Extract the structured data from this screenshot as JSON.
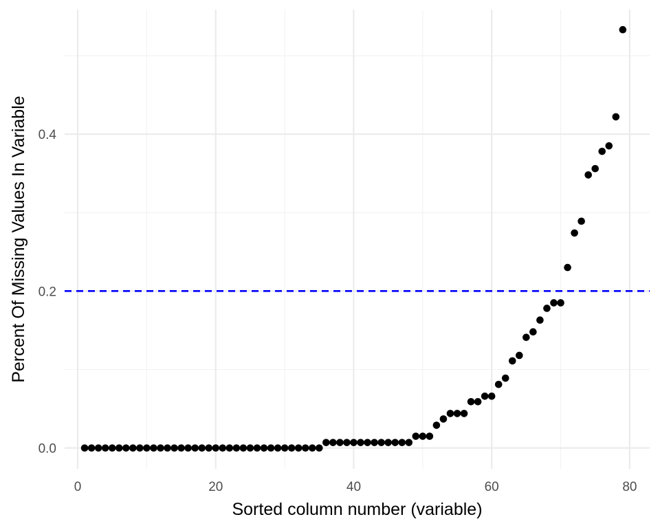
{
  "chart_data": {
    "type": "scatter",
    "title": "",
    "xlabel": "Sorted column number (variable)",
    "ylabel": "Percent Of Missing Values In Variable",
    "xlim": [
      -1.9,
      82.9
    ],
    "ylim": [
      -0.0266,
      0.5586
    ],
    "x_ticks": [
      0,
      20,
      40,
      60,
      80
    ],
    "x_tick_labels": [
      "0",
      "20",
      "40",
      "60",
      "80"
    ],
    "y_ticks": [
      0.0,
      0.2,
      0.4
    ],
    "y_tick_labels": [
      "0.0",
      "0.2",
      "0.4"
    ],
    "grid": true,
    "point_color": "#000000",
    "reference_line": {
      "y": 0.2,
      "color": "#0000ff",
      "style": "dashed"
    },
    "x": [
      1,
      2,
      3,
      4,
      5,
      6,
      7,
      8,
      9,
      10,
      11,
      12,
      13,
      14,
      15,
      16,
      17,
      18,
      19,
      20,
      21,
      22,
      23,
      24,
      25,
      26,
      27,
      28,
      29,
      30,
      31,
      32,
      33,
      34,
      35,
      36,
      37,
      38,
      39,
      40,
      41,
      42,
      43,
      44,
      45,
      46,
      47,
      48,
      49,
      50,
      51,
      52,
      53,
      54,
      55,
      56,
      57,
      58,
      59,
      60,
      61,
      62,
      63,
      64,
      65,
      66,
      67,
      68,
      69,
      70,
      71,
      72,
      73,
      74,
      75,
      76,
      77,
      78,
      79
    ],
    "y": [
      0,
      0,
      0,
      0,
      0,
      0,
      0,
      0,
      0,
      0,
      0,
      0,
      0,
      0,
      0,
      0,
      0,
      0,
      0,
      0,
      0,
      0,
      0,
      0,
      0,
      0,
      0,
      0,
      0,
      0,
      0,
      0,
      0,
      0,
      0,
      0.007,
      0.007,
      0.007,
      0.007,
      0.007,
      0.007,
      0.007,
      0.007,
      0.007,
      0.007,
      0.007,
      0.007,
      0.007,
      0.015,
      0.015,
      0.015,
      0.029,
      0.037,
      0.044,
      0.044,
      0.044,
      0.059,
      0.059,
      0.066,
      0.066,
      0.081,
      0.089,
      0.111,
      0.118,
      0.141,
      0.148,
      0.163,
      0.178,
      0.185,
      0.185,
      0.23,
      0.274,
      0.289,
      0.348,
      0.356,
      0.378,
      0.385,
      0.422,
      0.533
    ]
  }
}
